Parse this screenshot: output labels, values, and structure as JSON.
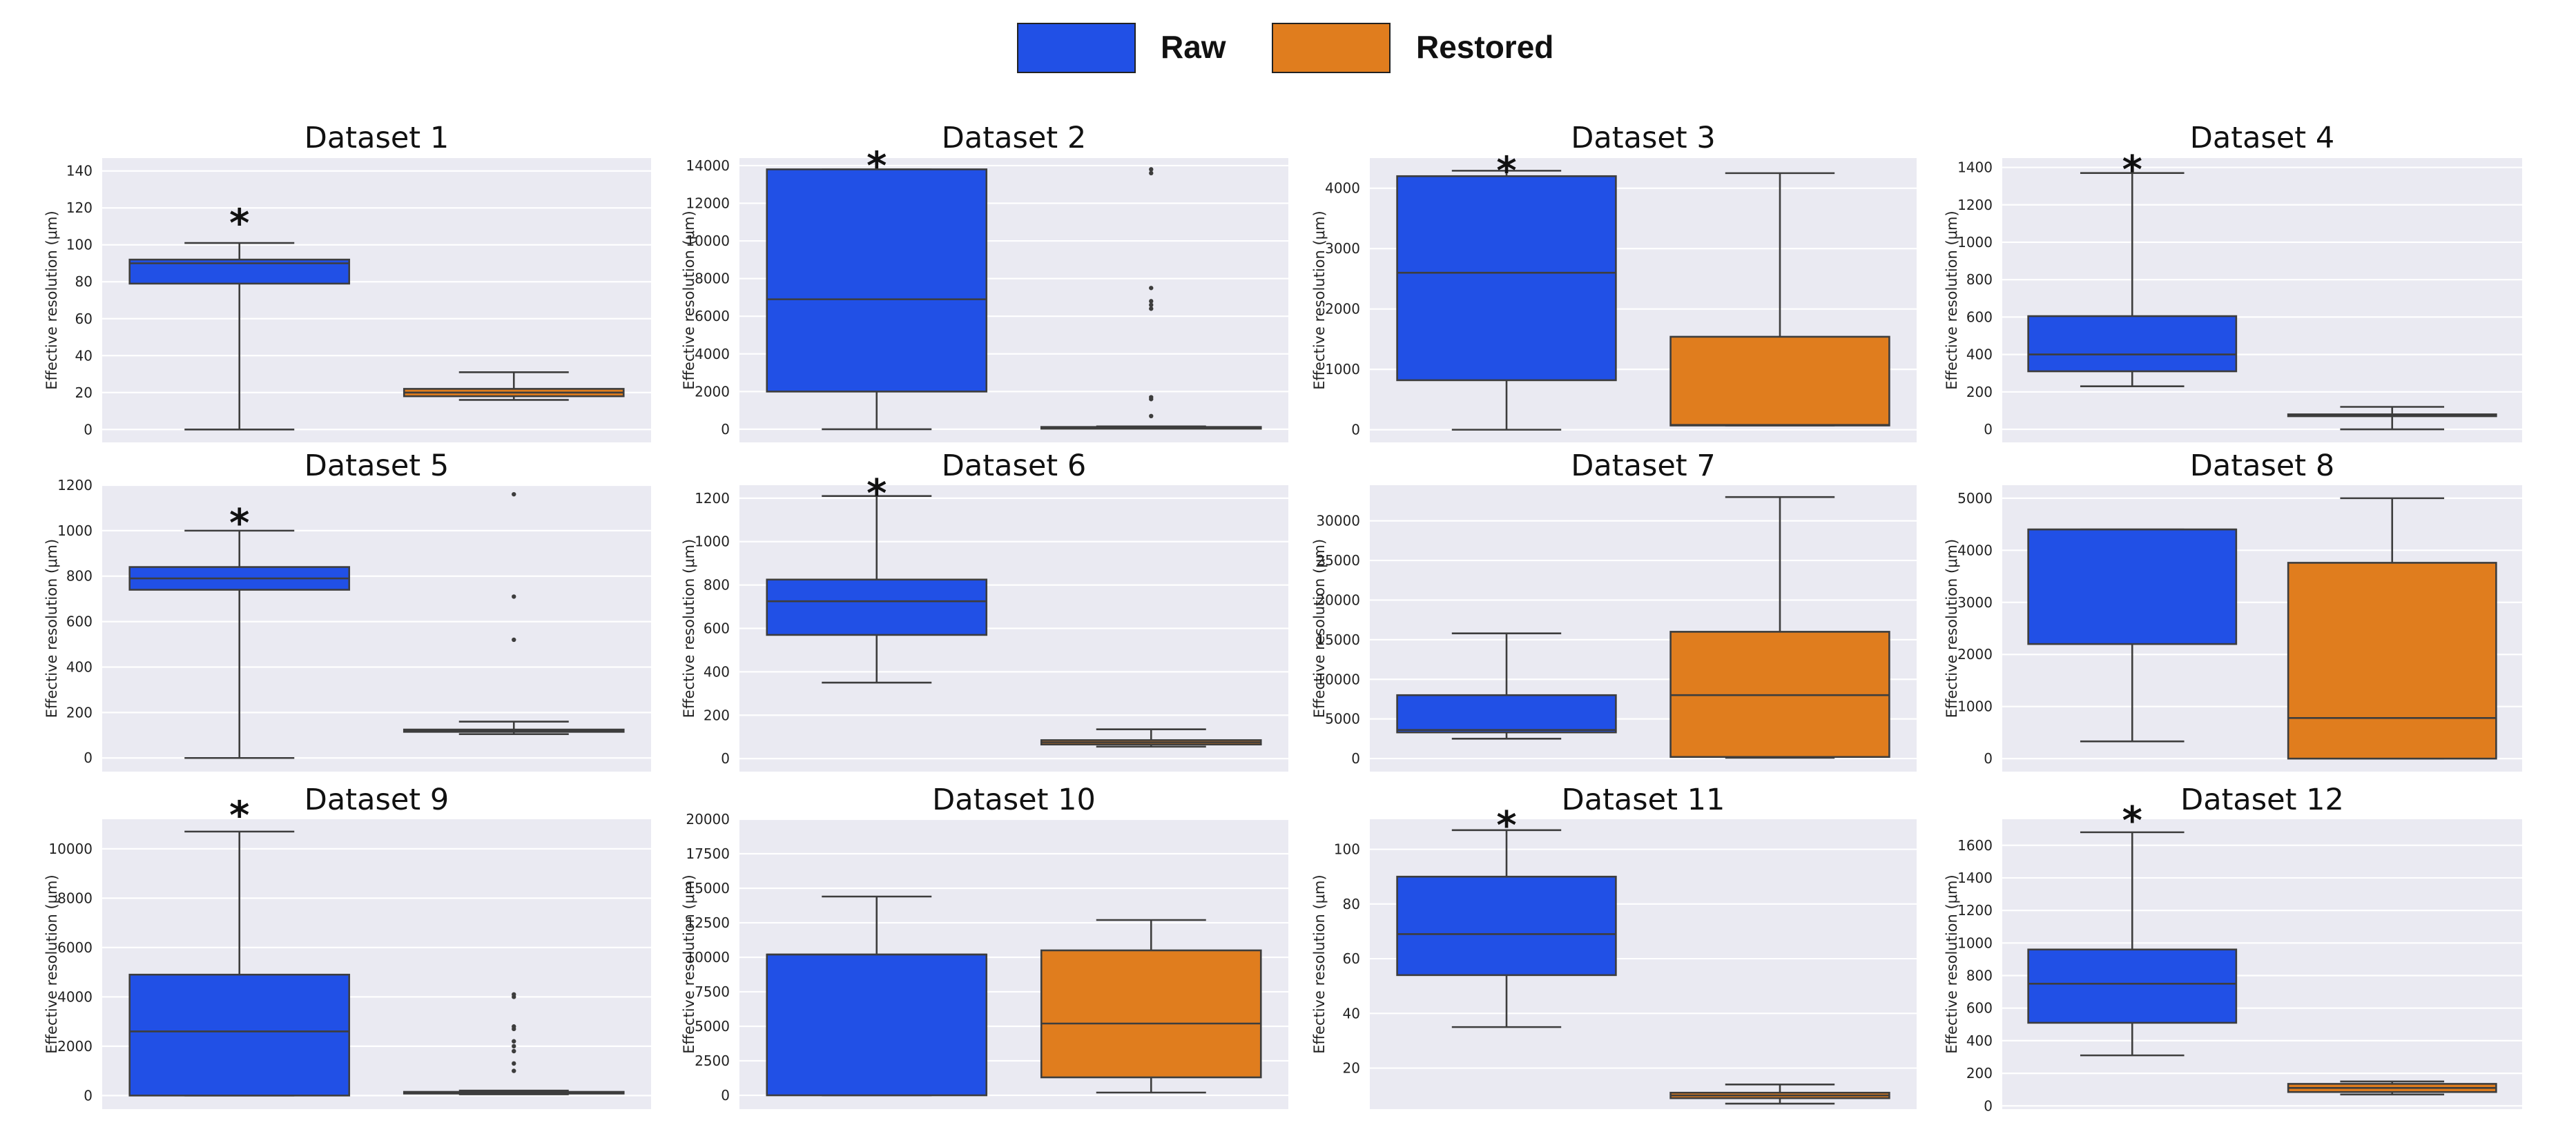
{
  "legend": {
    "items": [
      {
        "label": "Raw",
        "color": "#2150e6"
      },
      {
        "label": "Restored",
        "color": "#e07d1e"
      }
    ]
  },
  "colors": {
    "raw": "#2150e6",
    "restored": "#e07d1e",
    "plot_bg": "#eaeaf2",
    "grid": "#ffffff",
    "line": "#3d3d3d"
  },
  "chart_data": [
    {
      "type": "box",
      "title": "Dataset 1",
      "ylabel": "Effective resolution (μm)",
      "ylim": [
        -7,
        147
      ],
      "ticks": [
        0,
        20,
        40,
        60,
        80,
        100,
        120,
        140
      ],
      "star": "*",
      "star_value": 115,
      "series": [
        {
          "name": "Raw",
          "whislo": 0,
          "q1": 79,
          "med": 90,
          "q3": 92,
          "whishi": 101,
          "fliers": []
        },
        {
          "name": "Restored",
          "whislo": 16,
          "q1": 18,
          "med": 20,
          "q3": 22,
          "whishi": 31,
          "fliers": []
        }
      ]
    },
    {
      "type": "box",
      "title": "Dataset 2",
      "ylabel": "Effective resolution (μm)",
      "ylim": [
        -700,
        14400
      ],
      "ticks": [
        0,
        2000,
        4000,
        6000,
        8000,
        10000,
        12000,
        14000
      ],
      "star": "*",
      "star_value": 14300,
      "series": [
        {
          "name": "Raw",
          "whislo": 0,
          "q1": 2000,
          "med": 6900,
          "q3": 13800,
          "whishi": 13800,
          "fliers": []
        },
        {
          "name": "Restored",
          "whislo": 50,
          "q1": 60,
          "med": 80,
          "q3": 120,
          "whishi": 150,
          "fliers": [
            700,
            1600,
            1700,
            6400,
            6600,
            6800,
            7500,
            13600,
            13800
          ]
        }
      ]
    },
    {
      "type": "box",
      "title": "Dataset 3",
      "ylabel": "Effective resolution (μm)",
      "ylim": [
        -210,
        4500
      ],
      "ticks": [
        0,
        1000,
        2000,
        3000,
        4000
      ],
      "star": "*",
      "star_value": 4390,
      "series": [
        {
          "name": "Raw",
          "whislo": 0,
          "q1": 820,
          "med": 2600,
          "q3": 4200,
          "whishi": 4290,
          "fliers": []
        },
        {
          "name": "Restored",
          "whislo": 70,
          "q1": 70,
          "med": 80,
          "q3": 1540,
          "whishi": 4250,
          "fliers": []
        }
      ]
    },
    {
      "type": "box",
      "title": "Dataset 4",
      "ylabel": "Effective resolution (μm)",
      "ylim": [
        -70,
        1450
      ],
      "ticks": [
        0,
        200,
        400,
        600,
        800,
        1000,
        1200,
        1400
      ],
      "star": "*",
      "star_value": 1420,
      "series": [
        {
          "name": "Raw",
          "whislo": 230,
          "q1": 310,
          "med": 400,
          "q3": 605,
          "whishi": 1370,
          "fliers": []
        },
        {
          "name": "Restored",
          "whislo": 0,
          "q1": 70,
          "med": 75,
          "q3": 80,
          "whishi": 120,
          "fliers": []
        }
      ]
    },
    {
      "type": "box",
      "title": "Dataset 5",
      "ylabel": "Effective resolution (μm)",
      "ylim": [
        -60,
        1200
      ],
      "ticks": [
        0,
        200,
        400,
        600,
        800,
        1000,
        1200
      ],
      "star": "*",
      "star_value": 1060,
      "series": [
        {
          "name": "Raw",
          "whislo": 0,
          "q1": 740,
          "med": 790,
          "q3": 840,
          "whishi": 1000,
          "fliers": []
        },
        {
          "name": "Restored",
          "whislo": 105,
          "q1": 115,
          "med": 120,
          "q3": 125,
          "whishi": 160,
          "fliers": [
            520,
            710,
            1160
          ]
        }
      ]
    },
    {
      "type": "box",
      "title": "Dataset 6",
      "ylabel": "Effective resolution (μm)",
      "ylim": [
        -60,
        1260
      ],
      "ticks": [
        0,
        200,
        400,
        600,
        800,
        1000,
        1200
      ],
      "star": "*",
      "star_value": 1250,
      "series": [
        {
          "name": "Raw",
          "whislo": 350,
          "q1": 570,
          "med": 725,
          "q3": 825,
          "whishi": 1210,
          "fliers": []
        },
        {
          "name": "Restored",
          "whislo": 55,
          "q1": 65,
          "med": 75,
          "q3": 85,
          "whishi": 135,
          "fliers": []
        }
      ]
    },
    {
      "type": "box",
      "title": "Dataset 7",
      "ylabel": "Effective resolution (μm)",
      "ylim": [
        -1650,
        34500
      ],
      "ticks": [
        0,
        5000,
        10000,
        15000,
        20000,
        25000,
        30000
      ],
      "star": "",
      "star_value": null,
      "series": [
        {
          "name": "Raw",
          "whislo": 2500,
          "q1": 3300,
          "med": 3600,
          "q3": 8000,
          "whishi": 15800,
          "fliers": []
        },
        {
          "name": "Restored",
          "whislo": 100,
          "q1": 200,
          "med": 8000,
          "q3": 16000,
          "whishi": 33000,
          "fliers": []
        }
      ]
    },
    {
      "type": "box",
      "title": "Dataset 8",
      "ylabel": "Effective resolution (μm)",
      "ylim": [
        -250,
        5250
      ],
      "ticks": [
        0,
        1000,
        2000,
        3000,
        4000,
        5000
      ],
      "star": "",
      "star_value": null,
      "series": [
        {
          "name": "Raw",
          "whislo": 330,
          "q1": 2200,
          "med": 4400,
          "q3": 4400,
          "whishi": 4400,
          "fliers": []
        },
        {
          "name": "Restored",
          "whislo": 0,
          "q1": 0,
          "med": 780,
          "q3": 3760,
          "whishi": 5000,
          "fliers": []
        }
      ]
    },
    {
      "type": "box",
      "title": "Dataset 9",
      "ylabel": "Effective resolution (μm)",
      "ylim": [
        -550,
        11200
      ],
      "ticks": [
        0,
        2000,
        4000,
        6000,
        8000,
        10000
      ],
      "star": "*",
      "star_value": 11600,
      "series": [
        {
          "name": "Raw",
          "whislo": 0,
          "q1": 0,
          "med": 2600,
          "q3": 4900,
          "whishi": 10700,
          "fliers": []
        },
        {
          "name": "Restored",
          "whislo": 50,
          "q1": 80,
          "med": 100,
          "q3": 150,
          "whishi": 200,
          "fliers": [
            1000,
            1300,
            1800,
            2000,
            2200,
            2700,
            2800,
            4000,
            4100
          ]
        }
      ]
    },
    {
      "type": "box",
      "title": "Dataset 10",
      "ylabel": "Effective resolution (μm)",
      "ylim": [
        -1000,
        20000
      ],
      "ticks": [
        0,
        2500,
        5000,
        7500,
        10000,
        12500,
        15000,
        17500,
        20000
      ],
      "star": "",
      "star_value": null,
      "series": [
        {
          "name": "Raw",
          "whislo": 0,
          "q1": 0,
          "med": 10200,
          "q3": 10200,
          "whishi": 14400,
          "fliers": []
        },
        {
          "name": "Restored",
          "whislo": 200,
          "q1": 1300,
          "med": 5200,
          "q3": 10500,
          "whishi": 12700,
          "fliers": []
        }
      ]
    },
    {
      "type": "box",
      "title": "Dataset 11",
      "ylabel": "Effective resolution (μm)",
      "ylim": [
        5,
        111
      ],
      "ticks": [
        20,
        40,
        60,
        80,
        100
      ],
      "star": "*",
      "star_value": 111,
      "series": [
        {
          "name": "Raw",
          "whislo": 35,
          "q1": 54,
          "med": 69,
          "q3": 90,
          "whishi": 107,
          "fliers": []
        },
        {
          "name": "Restored",
          "whislo": 7,
          "q1": 9,
          "med": 10,
          "q3": 11,
          "whishi": 14,
          "fliers": []
        }
      ]
    },
    {
      "type": "box",
      "title": "Dataset 12",
      "ylabel": "Effective resolution (μm)",
      "ylim": [
        -20,
        1760
      ],
      "ticks": [
        0,
        200,
        400,
        600,
        800,
        1000,
        1200,
        1400,
        1600
      ],
      "star": "*",
      "star_value": 1790,
      "series": [
        {
          "name": "Raw",
          "whislo": 310,
          "q1": 510,
          "med": 750,
          "q3": 960,
          "whishi": 1680,
          "fliers": []
        },
        {
          "name": "Restored",
          "whislo": 70,
          "q1": 85,
          "med": 110,
          "q3": 135,
          "whishi": 150,
          "fliers": []
        }
      ]
    }
  ]
}
